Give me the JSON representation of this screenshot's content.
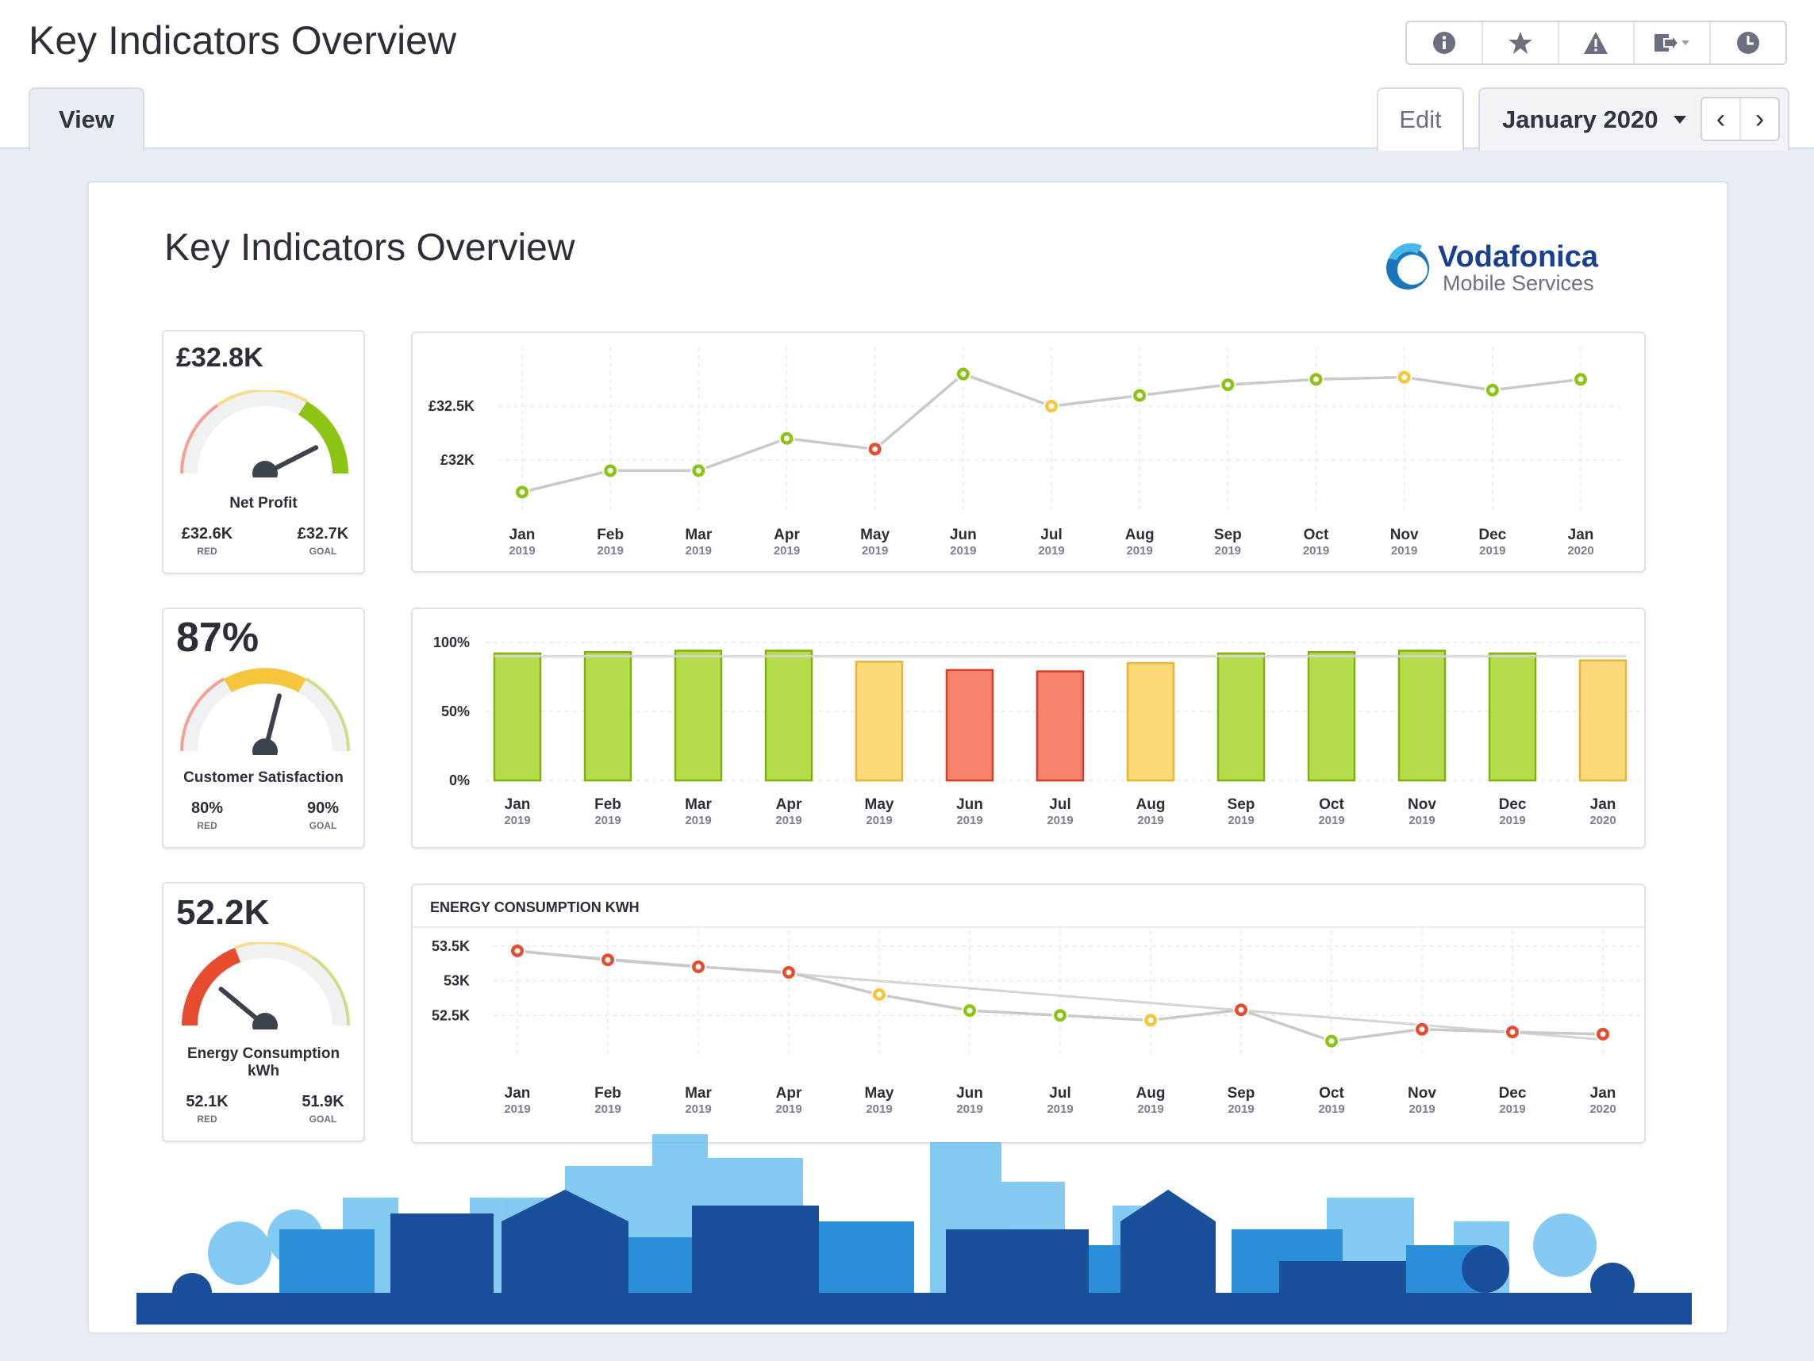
{
  "header": {
    "title": "Key Indicators Overview",
    "toolbar": [
      "info-icon",
      "star-icon",
      "warning-icon",
      "export-icon",
      "clock-icon"
    ]
  },
  "tabs": {
    "view": "View",
    "edit": "Edit",
    "period": "January 2020"
  },
  "nav": {
    "prev": "‹",
    "next": "›"
  },
  "dashboard": {
    "title": "Key Indicators Overview",
    "logo": {
      "name": "Vodafonica",
      "tagline": "Mobile Services"
    }
  },
  "colors": {
    "green": "#8cc414",
    "yellow": "#f6c53c",
    "red": "#e84c30",
    "grid": "#e6e9ee",
    "line": "#c9c9c9"
  },
  "kpis": [
    {
      "value": "£32.8K",
      "name": "Net Profit",
      "red_value": "£32.6K",
      "red_label": "RED",
      "goal_value": "£32.7K",
      "goal_label": "GOAL",
      "level": 0.85
    },
    {
      "value": "87%",
      "name": "Customer Satisfaction",
      "red_value": "80%",
      "red_label": "RED",
      "goal_value": "90%",
      "goal_label": "GOAL",
      "level": 0.58
    },
    {
      "value": "52.2K",
      "name": "Energy Consumption kWh",
      "red_value": "52.1K",
      "red_label": "RED",
      "goal_value": "51.9K",
      "goal_label": "GOAL",
      "level": 0.22
    }
  ],
  "chart_data": [
    {
      "type": "line",
      "x": [
        "Jan 2019",
        "Feb 2019",
        "Mar 2019",
        "Apr 2019",
        "May 2019",
        "Jun 2019",
        "Jul 2019",
        "Aug 2019",
        "Sep 2019",
        "Oct 2019",
        "Nov 2019",
        "Dec 2019",
        "Jan 2020"
      ],
      "months": [
        "Jan",
        "Feb",
        "Mar",
        "Apr",
        "May",
        "Jun",
        "Jul",
        "Aug",
        "Sep",
        "Oct",
        "Nov",
        "Dec",
        "Jan"
      ],
      "years": [
        "2019",
        "2019",
        "2019",
        "2019",
        "2019",
        "2019",
        "2019",
        "2019",
        "2019",
        "2019",
        "2019",
        "2019",
        "2020"
      ],
      "values": [
        31.7,
        31.9,
        31.9,
        32.2,
        32.1,
        32.8,
        32.5,
        32.6,
        32.7,
        32.75,
        32.77,
        32.65,
        32.75
      ],
      "status": [
        "green",
        "green",
        "green",
        "green",
        "red",
        "green",
        "yellow",
        "green",
        "green",
        "green",
        "yellow",
        "green",
        "green"
      ],
      "yticks": [
        "£32K",
        "£32.5K"
      ],
      "ytick_values": [
        32.0,
        32.5
      ],
      "ylim": [
        31.6,
        32.9
      ],
      "title": "",
      "xlabel": "",
      "ylabel": ""
    },
    {
      "type": "bar",
      "x": [
        "Jan 2019",
        "Feb 2019",
        "Mar 2019",
        "Apr 2019",
        "May 2019",
        "Jun 2019",
        "Jul 2019",
        "Aug 2019",
        "Sep 2019",
        "Oct 2019",
        "Nov 2019",
        "Dec 2019",
        "Jan 2020"
      ],
      "months": [
        "Jan",
        "Feb",
        "Mar",
        "Apr",
        "May",
        "Jun",
        "Jul",
        "Aug",
        "Sep",
        "Oct",
        "Nov",
        "Dec",
        "Jan"
      ],
      "years": [
        "2019",
        "2019",
        "2019",
        "2019",
        "2019",
        "2019",
        "2019",
        "2019",
        "2019",
        "2019",
        "2019",
        "2019",
        "2020"
      ],
      "values": [
        92,
        93,
        94,
        94,
        86,
        80,
        79,
        85,
        92,
        93,
        94,
        92,
        87
      ],
      "status": [
        "green",
        "green",
        "green",
        "green",
        "yellow",
        "red",
        "red",
        "yellow",
        "green",
        "green",
        "green",
        "green",
        "yellow"
      ],
      "goal": 90,
      "yticks": [
        "0%",
        "50%",
        "100%"
      ],
      "ytick_values": [
        0,
        50,
        100
      ],
      "ylim": [
        0,
        100
      ],
      "title": "",
      "xlabel": "",
      "ylabel": ""
    },
    {
      "type": "line",
      "title": "ENERGY CONSUMPTION KWH",
      "x": [
        "Jan 2019",
        "Feb 2019",
        "Mar 2019",
        "Apr 2019",
        "May 2019",
        "Jun 2019",
        "Jul 2019",
        "Aug 2019",
        "Sep 2019",
        "Oct 2019",
        "Nov 2019",
        "Dec 2019",
        "Jan 2020"
      ],
      "months": [
        "Jan",
        "Feb",
        "Mar",
        "Apr",
        "May",
        "Jun",
        "Jul",
        "Aug",
        "Sep",
        "Oct",
        "Nov",
        "Dec",
        "Jan"
      ],
      "years": [
        "2019",
        "2019",
        "2019",
        "2019",
        "2019",
        "2019",
        "2019",
        "2019",
        "2019",
        "2019",
        "2019",
        "2019",
        "2020"
      ],
      "values": [
        53.43,
        53.3,
        53.2,
        53.12,
        52.8,
        52.57,
        52.5,
        52.43,
        52.58,
        52.13,
        52.3,
        52.26,
        52.23
      ],
      "status": [
        "red",
        "red",
        "red",
        "red",
        "yellow",
        "green",
        "green",
        "yellow",
        "red",
        "green",
        "red",
        "red",
        "red"
      ],
      "trend": [
        53.42,
        52.15
      ],
      "yticks": [
        "52.5K",
        "53K",
        "53.5K"
      ],
      "ytick_values": [
        52.5,
        53.0,
        53.5
      ],
      "ylim": [
        52.0,
        53.6
      ],
      "xlabel": "",
      "ylabel": ""
    }
  ]
}
